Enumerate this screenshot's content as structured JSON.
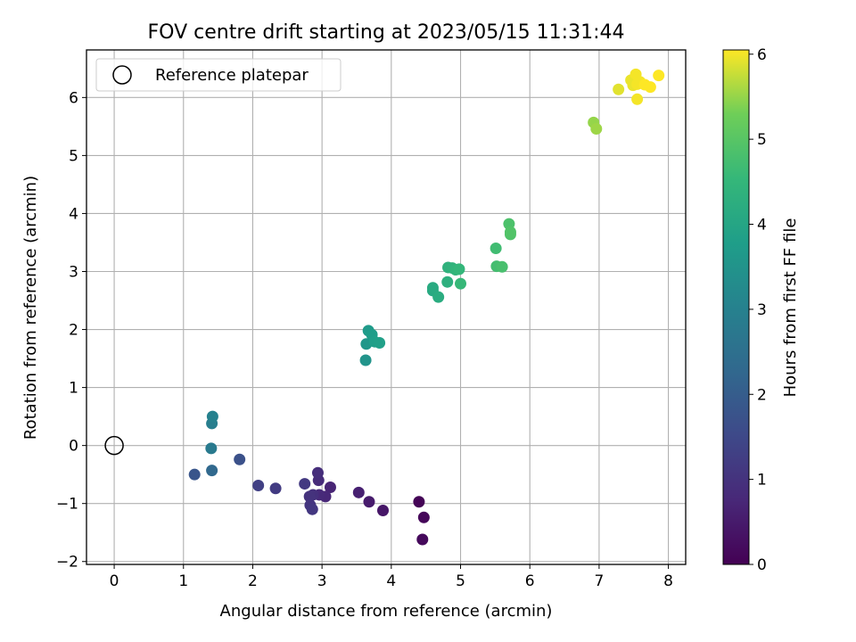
{
  "chart_data": {
    "type": "scatter",
    "title": "FOV centre drift starting at 2023/05/15 11:31:44",
    "xlabel": "Angular distance from reference (arcmin)",
    "ylabel": "Rotation from reference (arcmin)",
    "xlim": [
      -0.4,
      8.25
    ],
    "ylim": [
      -2.05,
      6.82
    ],
    "xticks": [
      0,
      1,
      2,
      3,
      4,
      5,
      6,
      7,
      8
    ],
    "yticks": [
      -2,
      -1,
      0,
      1,
      2,
      3,
      4,
      5,
      6
    ],
    "grid": true,
    "legend": {
      "position": "top-left",
      "entries": [
        "Reference platepar"
      ]
    },
    "reference_point": {
      "x": 0,
      "y": 0,
      "label": "Reference platepar"
    },
    "colorbar": {
      "label": "Hours from first FF file",
      "range": [
        0,
        6.05
      ],
      "ticks": [
        0,
        1,
        2,
        3,
        4,
        5,
        6
      ],
      "colormap": "viridis"
    },
    "points": [
      {
        "x": 4.4,
        "y": -0.97,
        "c": 0.05
      },
      {
        "x": 4.47,
        "y": -1.24,
        "c": 0.1
      },
      {
        "x": 4.45,
        "y": -1.62,
        "c": 0.15
      },
      {
        "x": 3.88,
        "y": -1.12,
        "c": 0.4
      },
      {
        "x": 3.68,
        "y": -0.97,
        "c": 0.5
      },
      {
        "x": 3.53,
        "y": -0.81,
        "c": 0.6
      },
      {
        "x": 3.12,
        "y": -0.72,
        "c": 0.7
      },
      {
        "x": 3.05,
        "y": -0.88,
        "c": 0.75
      },
      {
        "x": 2.96,
        "y": -0.85,
        "c": 0.8
      },
      {
        "x": 2.95,
        "y": -0.6,
        "c": 0.85
      },
      {
        "x": 2.94,
        "y": -0.47,
        "c": 0.9
      },
      {
        "x": 2.87,
        "y": -0.85,
        "c": 0.95
      },
      {
        "x": 2.82,
        "y": -0.88,
        "c": 1.0
      },
      {
        "x": 2.83,
        "y": -1.03,
        "c": 1.05
      },
      {
        "x": 2.86,
        "y": -1.1,
        "c": 1.1
      },
      {
        "x": 2.75,
        "y": -0.66,
        "c": 1.15
      },
      {
        "x": 2.33,
        "y": -0.74,
        "c": 1.2
      },
      {
        "x": 2.08,
        "y": -0.69,
        "c": 1.3
      },
      {
        "x": 1.81,
        "y": -0.24,
        "c": 1.7
      },
      {
        "x": 1.16,
        "y": -0.5,
        "c": 1.8
      },
      {
        "x": 1.41,
        "y": -0.43,
        "c": 2.3
      },
      {
        "x": 1.4,
        "y": -0.05,
        "c": 2.8
      },
      {
        "x": 1.41,
        "y": 0.38,
        "c": 2.9
      },
      {
        "x": 1.42,
        "y": 0.5,
        "c": 3.0
      },
      {
        "x": 3.63,
        "y": 1.47,
        "c": 3.5
      },
      {
        "x": 3.64,
        "y": 1.75,
        "c": 3.6
      },
      {
        "x": 3.67,
        "y": 1.98,
        "c": 3.7
      },
      {
        "x": 3.72,
        "y": 1.91,
        "c": 3.75
      },
      {
        "x": 3.76,
        "y": 1.79,
        "c": 3.8
      },
      {
        "x": 3.83,
        "y": 1.77,
        "c": 3.85
      },
      {
        "x": 4.6,
        "y": 2.67,
        "c": 4.1
      },
      {
        "x": 4.6,
        "y": 2.72,
        "c": 4.15
      },
      {
        "x": 4.68,
        "y": 2.56,
        "c": 4.2
      },
      {
        "x": 4.81,
        "y": 2.82,
        "c": 4.3
      },
      {
        "x": 4.82,
        "y": 3.07,
        "c": 4.35
      },
      {
        "x": 4.88,
        "y": 3.06,
        "c": 4.4
      },
      {
        "x": 4.93,
        "y": 3.03,
        "c": 4.45
      },
      {
        "x": 4.98,
        "y": 3.04,
        "c": 4.5
      },
      {
        "x": 5.0,
        "y": 2.79,
        "c": 4.55
      },
      {
        "x": 5.51,
        "y": 3.4,
        "c": 4.7
      },
      {
        "x": 5.52,
        "y": 3.09,
        "c": 4.75
      },
      {
        "x": 5.6,
        "y": 3.08,
        "c": 4.8
      },
      {
        "x": 5.7,
        "y": 3.82,
        "c": 4.85
      },
      {
        "x": 5.72,
        "y": 3.64,
        "c": 4.9
      },
      {
        "x": 5.72,
        "y": 3.68,
        "c": 4.92
      },
      {
        "x": 6.92,
        "y": 5.57,
        "c": 5.5
      },
      {
        "x": 6.96,
        "y": 5.46,
        "c": 5.55
      },
      {
        "x": 7.28,
        "y": 6.14,
        "c": 5.9
      },
      {
        "x": 7.46,
        "y": 6.3,
        "c": 5.95
      },
      {
        "x": 7.49,
        "y": 6.21,
        "c": 5.95
      },
      {
        "x": 7.53,
        "y": 6.4,
        "c": 6.0
      },
      {
        "x": 7.55,
        "y": 6.23,
        "c": 6.0
      },
      {
        "x": 7.55,
        "y": 5.97,
        "c": 6.0
      },
      {
        "x": 7.59,
        "y": 6.27,
        "c": 6.0
      },
      {
        "x": 7.66,
        "y": 6.22,
        "c": 6.05
      },
      {
        "x": 7.74,
        "y": 6.18,
        "c": 6.05
      },
      {
        "x": 7.86,
        "y": 6.38,
        "c": 6.05
      }
    ]
  }
}
